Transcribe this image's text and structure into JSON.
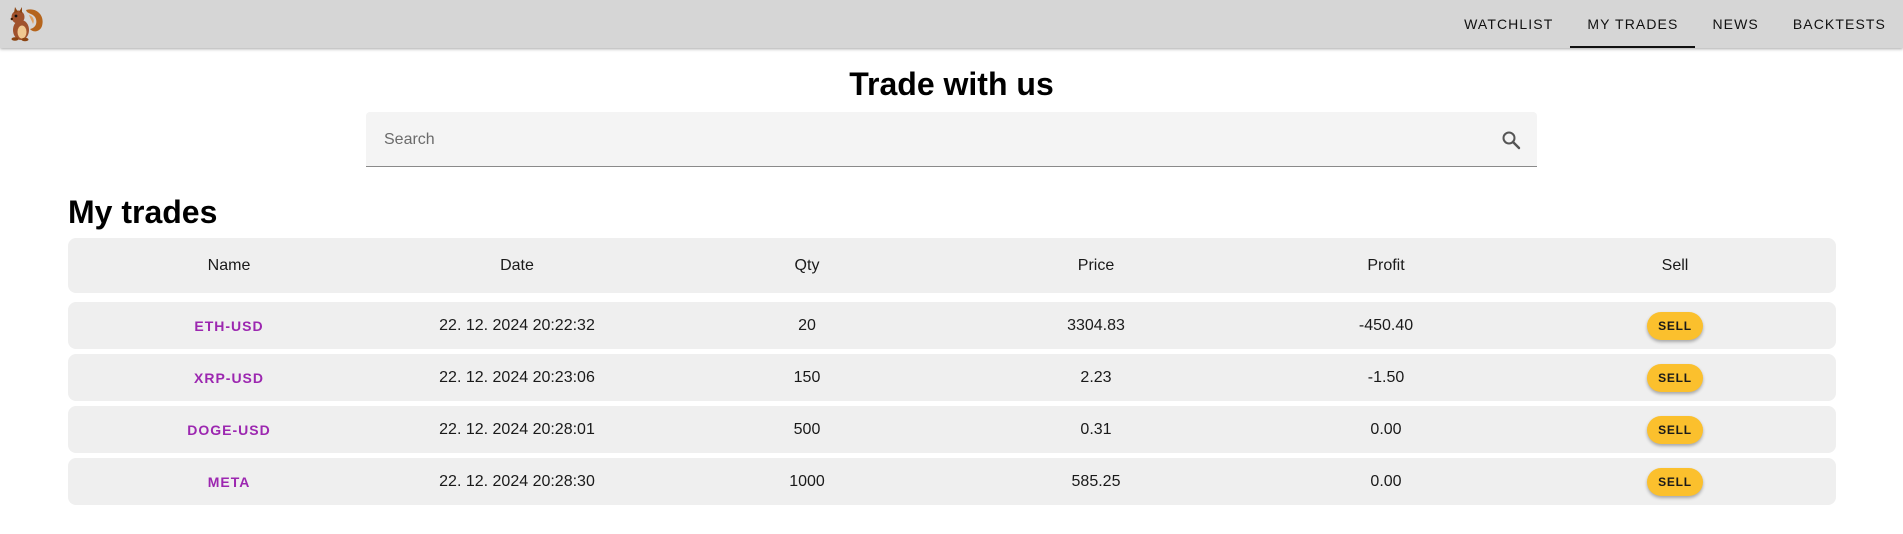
{
  "nav": {
    "logo_icon": "squirrel-icon",
    "items": [
      {
        "label": "WATCHLIST",
        "active": false
      },
      {
        "label": "MY TRADES",
        "active": true
      },
      {
        "label": "NEWS",
        "active": false
      },
      {
        "label": "BACKTESTS",
        "active": false
      }
    ]
  },
  "hero": {
    "title": "Trade with us"
  },
  "search": {
    "placeholder": "Search",
    "value": "",
    "icon": "search-icon"
  },
  "trades": {
    "title": "My trades",
    "columns": [
      "Name",
      "Date",
      "Qty",
      "Price",
      "Profit",
      "Sell"
    ],
    "rows": [
      {
        "name": "ETH-USD",
        "date": "22. 12. 2024 20:22:32",
        "qty": "20",
        "price": "3304.83",
        "profit": "-450.40",
        "sell": "SELL"
      },
      {
        "name": "XRP-USD",
        "date": "22. 12. 2024 20:23:06",
        "qty": "150",
        "price": "2.23",
        "profit": "-1.50",
        "sell": "SELL"
      },
      {
        "name": "DOGE-USD",
        "date": "22. 12. 2024 20:28:01",
        "qty": "500",
        "price": "0.31",
        "profit": "0.00",
        "sell": "SELL"
      },
      {
        "name": "META",
        "date": "22. 12. 2024 20:28:30",
        "qty": "1000",
        "price": "585.25",
        "profit": "0.00",
        "sell": "SELL"
      }
    ]
  },
  "colors": {
    "appbar": "#d6d6d6",
    "link": "#9c27b0",
    "sell_button": "#fbc02d",
    "row_background": "#efefef"
  }
}
